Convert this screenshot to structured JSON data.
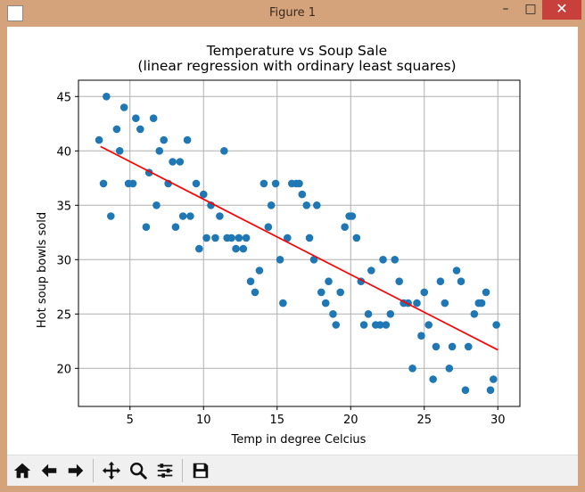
{
  "window": {
    "title": "Figure 1",
    "min_label": "–",
    "max_label": "□",
    "close_label": "✕"
  },
  "toolbar": {
    "buttons": [
      {
        "icon": "home-icon"
      },
      {
        "icon": "back-arrow-icon"
      },
      {
        "icon": "forward-arrow-icon"
      },
      {
        "icon": "pan-icon"
      },
      {
        "icon": "zoom-icon"
      },
      {
        "icon": "subplots-icon"
      },
      {
        "icon": "save-icon"
      }
    ]
  },
  "chart_data": {
    "type": "scatter",
    "title": "Temperature vs Soup Sale",
    "subtitle": "(linear regression with ordinary least squares)",
    "xlabel": "Temp in degree Celcius",
    "ylabel": "Hot soup bowls sold",
    "xlim": [
      1.5,
      31.5
    ],
    "ylim": [
      16.5,
      46.5
    ],
    "xticks": [
      5,
      10,
      15,
      20,
      25,
      30
    ],
    "yticks": [
      20,
      25,
      30,
      35,
      40,
      45
    ],
    "grid": true,
    "point_color": "#1f77b4",
    "line_color": "#ff0000",
    "points": [
      [
        2.9,
        41
      ],
      [
        3.2,
        37
      ],
      [
        3.4,
        45
      ],
      [
        3.7,
        34
      ],
      [
        4.1,
        42
      ],
      [
        4.3,
        40
      ],
      [
        4.6,
        44
      ],
      [
        4.9,
        37
      ],
      [
        5.2,
        37
      ],
      [
        5.4,
        43
      ],
      [
        5.7,
        42
      ],
      [
        6.1,
        33
      ],
      [
        6.3,
        38
      ],
      [
        6.6,
        43
      ],
      [
        6.8,
        35
      ],
      [
        7.0,
        40
      ],
      [
        7.3,
        41
      ],
      [
        7.6,
        37
      ],
      [
        7.9,
        39
      ],
      [
        8.1,
        33
      ],
      [
        8.4,
        39
      ],
      [
        8.6,
        34
      ],
      [
        8.9,
        41
      ],
      [
        9.1,
        34
      ],
      [
        9.5,
        37
      ],
      [
        9.7,
        31
      ],
      [
        10.0,
        36
      ],
      [
        10.2,
        32
      ],
      [
        10.5,
        35
      ],
      [
        10.8,
        32
      ],
      [
        11.1,
        34
      ],
      [
        11.4,
        40
      ],
      [
        11.6,
        32
      ],
      [
        11.9,
        32
      ],
      [
        12.2,
        31
      ],
      [
        12.4,
        32
      ],
      [
        12.7,
        31
      ],
      [
        12.9,
        32
      ],
      [
        13.2,
        28
      ],
      [
        13.5,
        27
      ],
      [
        13.8,
        29
      ],
      [
        14.1,
        37
      ],
      [
        14.4,
        33
      ],
      [
        14.6,
        35
      ],
      [
        14.9,
        37
      ],
      [
        15.2,
        30
      ],
      [
        15.4,
        26
      ],
      [
        15.7,
        32
      ],
      [
        16.0,
        37
      ],
      [
        16.3,
        37
      ],
      [
        16.5,
        37
      ],
      [
        16.7,
        36
      ],
      [
        17.0,
        35
      ],
      [
        17.2,
        32
      ],
      [
        17.5,
        30
      ],
      [
        17.7,
        35
      ],
      [
        18.0,
        27
      ],
      [
        18.3,
        26
      ],
      [
        18.5,
        28
      ],
      [
        18.8,
        25
      ],
      [
        19.0,
        24
      ],
      [
        19.3,
        27
      ],
      [
        19.6,
        33
      ],
      [
        19.9,
        34
      ],
      [
        20.1,
        34
      ],
      [
        20.4,
        32
      ],
      [
        20.7,
        28
      ],
      [
        20.9,
        24
      ],
      [
        21.2,
        25
      ],
      [
        21.4,
        29
      ],
      [
        21.7,
        24
      ],
      [
        22.0,
        24
      ],
      [
        22.2,
        30
      ],
      [
        22.4,
        24
      ],
      [
        22.7,
        25
      ],
      [
        23.0,
        30
      ],
      [
        23.3,
        28
      ],
      [
        23.6,
        26
      ],
      [
        23.9,
        26
      ],
      [
        24.2,
        20
      ],
      [
        24.5,
        26
      ],
      [
        24.8,
        23
      ],
      [
        25.0,
        27
      ],
      [
        25.3,
        24
      ],
      [
        25.6,
        19
      ],
      [
        25.8,
        22
      ],
      [
        26.1,
        28
      ],
      [
        26.4,
        26
      ],
      [
        26.7,
        20
      ],
      [
        26.9,
        22
      ],
      [
        27.2,
        29
      ],
      [
        27.5,
        28
      ],
      [
        27.8,
        18
      ],
      [
        28.0,
        22
      ],
      [
        28.4,
        25
      ],
      [
        28.7,
        26
      ],
      [
        28.9,
        26
      ],
      [
        29.2,
        27
      ],
      [
        29.5,
        18
      ],
      [
        29.7,
        19
      ],
      [
        29.9,
        24
      ]
    ],
    "regression_line": [
      [
        3.0,
        40.4
      ],
      [
        30.0,
        21.7
      ]
    ]
  }
}
